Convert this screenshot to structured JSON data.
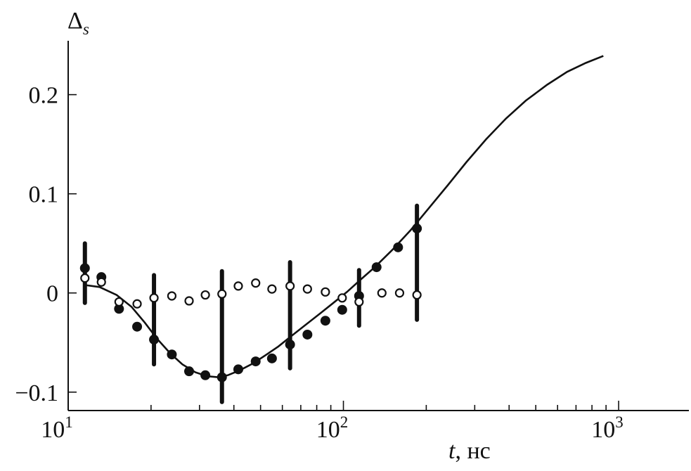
{
  "chart_data": {
    "type": "scatter",
    "title": "",
    "ylabel_main": "Δ",
    "ylabel_sub": "s",
    "xlabel_var": "t",
    "xlabel_unit": ", нс",
    "xscale": "log",
    "xlim": [
      10,
      1800
    ],
    "ylim": [
      -0.12,
      0.26
    ],
    "grid": false,
    "legend": "none",
    "y_ticks": [
      {
        "value": 0.2,
        "label": "0.2"
      },
      {
        "value": 0.1,
        "label": "0.1"
      },
      {
        "value": 0,
        "label": "0"
      },
      {
        "value": -0.1,
        "label": "−0.1"
      }
    ],
    "x_major_ticks": [
      {
        "value": 10,
        "base": "10",
        "exp": "1"
      },
      {
        "value": 100,
        "base": "10",
        "exp": "2"
      },
      {
        "value": 1000,
        "base": "10",
        "exp": "3"
      }
    ],
    "series": [
      {
        "marker": "filled-circle",
        "x": [
          11.5,
          13.2,
          15.3,
          17.8,
          20.5,
          23.8,
          27.5,
          31.5,
          36.2,
          41.5,
          48.0,
          55.0,
          64.0,
          74.0,
          86.0,
          99.0,
          114.0,
          132.0,
          158.0,
          185.0
        ],
        "y": [
          0.025,
          0.016,
          -0.016,
          -0.034,
          -0.047,
          -0.062,
          -0.079,
          -0.083,
          -0.085,
          -0.077,
          -0.069,
          -0.066,
          -0.052,
          -0.042,
          -0.028,
          -0.017,
          -0.003,
          0.026,
          0.046,
          0.065
        ]
      },
      {
        "marker": "open-circle",
        "x": [
          11.5,
          13.2,
          15.3,
          17.8,
          20.5,
          23.8,
          27.5,
          31.5,
          36.2,
          41.5,
          48.0,
          55.0,
          64.0,
          74.0,
          86.0,
          99.0,
          114.0,
          138.0,
          160.0,
          185.0
        ],
        "y": [
          0.015,
          0.011,
          -0.009,
          -0.011,
          -0.005,
          -0.003,
          -0.008,
          -0.002,
          -0.001,
          0.007,
          0.01,
          0.004,
          0.007,
          0.004,
          0.001,
          -0.005,
          -0.009,
          0.0,
          0.0,
          -0.002
        ]
      },
      {
        "marker": "line",
        "x": [
          11.5,
          13.0,
          15.0,
          17.0,
          19.0,
          21.0,
          23.5,
          26.0,
          29.0,
          32.0,
          35.0,
          38.0,
          42.0,
          47.0,
          52.0,
          58.0,
          65.0,
          73.0,
          82.0,
          92.0,
          103.0,
          115.0,
          130.0,
          150.0,
          175.0,
          205.0,
          240.0,
          280.0,
          330.0,
          390.0,
          460.0,
          550.0,
          650.0,
          760.0,
          880.0
        ],
        "y": [
          0.008,
          0.006,
          -0.002,
          -0.014,
          -0.03,
          -0.046,
          -0.061,
          -0.072,
          -0.08,
          -0.084,
          -0.085,
          -0.083,
          -0.078,
          -0.071,
          -0.063,
          -0.054,
          -0.043,
          -0.032,
          -0.021,
          -0.01,
          0.001,
          0.013,
          0.026,
          0.043,
          0.063,
          0.086,
          0.109,
          0.132,
          0.155,
          0.176,
          0.194,
          0.21,
          0.223,
          0.232,
          0.239
        ]
      }
    ],
    "error_bars": [
      {
        "x": 11.5,
        "low": -0.01,
        "high": 0.05
      },
      {
        "x": 20.5,
        "low": -0.072,
        "high": 0.018
      },
      {
        "x": 36.2,
        "low": -0.11,
        "high": 0.022
      },
      {
        "x": 64.0,
        "low": -0.076,
        "high": 0.031
      },
      {
        "x": 114.0,
        "low": -0.033,
        "high": 0.023
      },
      {
        "x": 185.0,
        "low": -0.027,
        "high": 0.088
      }
    ]
  }
}
